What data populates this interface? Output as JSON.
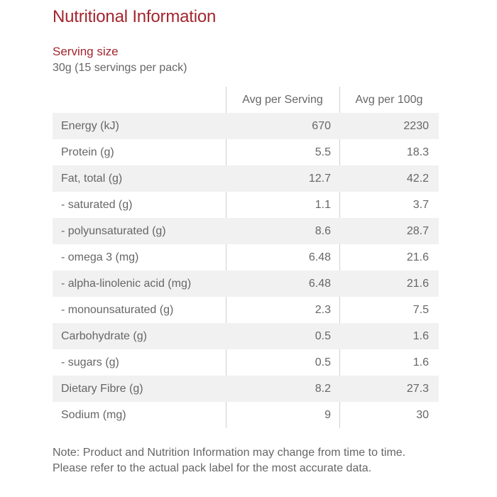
{
  "title": "Nutritional Information",
  "serving": {
    "heading": "Serving size",
    "value": "30g (15 servings per pack)"
  },
  "table": {
    "headers": {
      "nutrient": "",
      "per_serving": "Avg per Serving",
      "per_100g": "Avg per 100g"
    },
    "rows": [
      {
        "label": "Energy (kJ)",
        "per_serving": "670",
        "per_100g": "2230"
      },
      {
        "label": "Protein (g)",
        "per_serving": "5.5",
        "per_100g": "18.3"
      },
      {
        "label": "Fat, total (g)",
        "per_serving": "12.7",
        "per_100g": "42.2"
      },
      {
        "label": "- saturated (g)",
        "per_serving": "1.1",
        "per_100g": "3.7"
      },
      {
        "label": "- polyunsaturated (g)",
        "per_serving": "8.6",
        "per_100g": "28.7"
      },
      {
        "label": "- omega 3 (mg)",
        "per_serving": "6.48",
        "per_100g": "21.6"
      },
      {
        "label": "- alpha-linolenic acid (mg)",
        "per_serving": "6.48",
        "per_100g": "21.6"
      },
      {
        "label": "- monounsaturated (g)",
        "per_serving": "2.3",
        "per_100g": "7.5"
      },
      {
        "label": "Carbohydrate (g)",
        "per_serving": "0.5",
        "per_100g": "1.6"
      },
      {
        "label": "- sugars (g)",
        "per_serving": "0.5",
        "per_100g": "1.6"
      },
      {
        "label": "Dietary Fibre (g)",
        "per_serving": "8.2",
        "per_100g": "27.3"
      },
      {
        "label": "Sodium (mg)",
        "per_serving": "9",
        "per_100g": "30"
      }
    ]
  },
  "note": "Note: Product and Nutrition Information may change from time to time. Please refer to the actual pack label for the most accurate data.",
  "colors": {
    "title": "#a3262f",
    "row_shade": "#f1f1f1",
    "text": "#666666",
    "divider": "#d0d0d0"
  }
}
